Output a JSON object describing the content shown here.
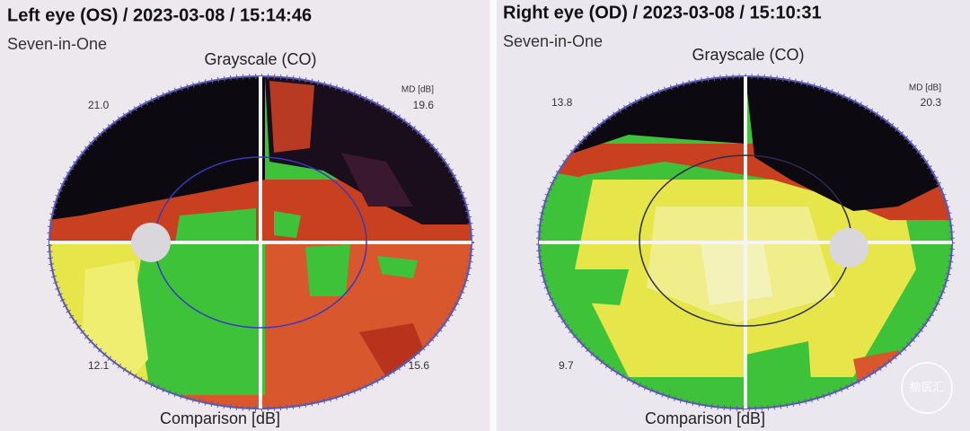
{
  "panels": [
    {
      "title": "Left eye (OS) / 2023-03-08 / 15:14:46",
      "subtitle": "Seven-in-One",
      "top_label": "Grayscale (CO)",
      "md_label": "MD [dB]",
      "bottom_label": "Comparison [dB]",
      "quadrants": {
        "top_left": "21.0",
        "top_right": "19.6",
        "bottom_left": "12.1",
        "bottom_right": "15.6"
      }
    },
    {
      "title": "Right eye (OD) / 2023-03-08 / 15:10:31",
      "subtitle": "Seven-in-One",
      "top_label": "Grayscale (CO)",
      "md_label": "MD [dB]",
      "bottom_label": "Comparison [dB]",
      "quadrants": {
        "top_left": "13.8",
        "top_right": "20.3",
        "bottom_left": "9.7"
      }
    }
  ],
  "watermark": "脑医汇"
}
